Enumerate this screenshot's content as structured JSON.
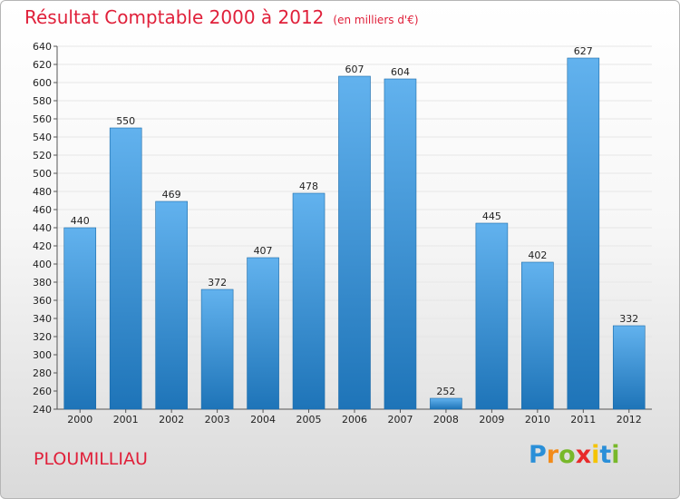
{
  "title": "Résultat Comptable 2000 à 2012",
  "unit": "(en milliers d'€)",
  "town": "PLOUMILLIAU",
  "logo": {
    "letters": [
      "P",
      "r",
      "o",
      "x",
      "i",
      "t",
      "i"
    ],
    "colors": [
      "#2a8fd8",
      "#f28b1a",
      "#78b82a",
      "#e82a2a",
      "#f5c400",
      "#2a8fd8",
      "#78b82a"
    ]
  },
  "colors": {
    "title": "#e0203a",
    "bar_top": "#62b2ee",
    "bar_bottom": "#1e74b8"
  },
  "chart_data": {
    "type": "bar",
    "title": "Résultat Comptable 2000 à 2012",
    "categories": [
      "2000",
      "2001",
      "2002",
      "2003",
      "2004",
      "2005",
      "2006",
      "2007",
      "2008",
      "2009",
      "2010",
      "2011",
      "2012"
    ],
    "values": [
      440,
      550,
      469,
      372,
      407,
      478,
      607,
      604,
      252,
      445,
      402,
      627,
      332
    ],
    "ylim": [
      240,
      640
    ],
    "ytick_step": 20,
    "xlabel": "",
    "ylabel": "",
    "grid": true
  }
}
